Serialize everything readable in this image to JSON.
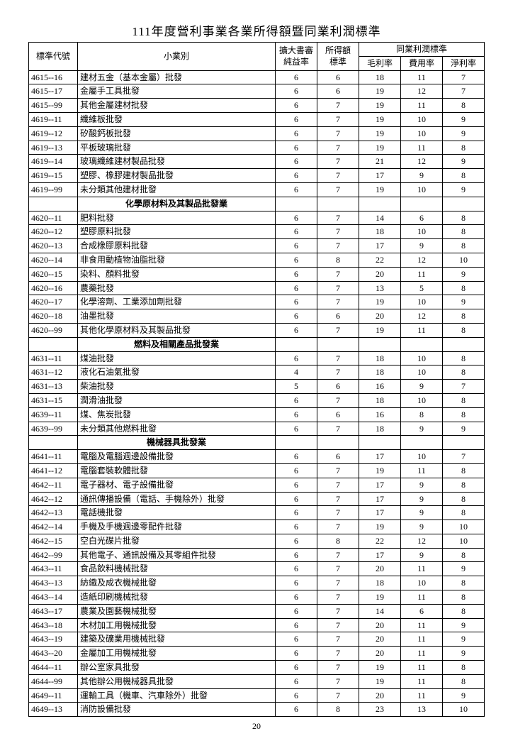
{
  "title": "111年度營利事業各業所得額暨同業利潤標準",
  "page_number": "20",
  "headers": {
    "code": "標準代號",
    "name": "小業別",
    "audit": "擴大書審\n純益率",
    "income": "所得額\n標準",
    "profit_group": "同業利潤標準",
    "gross": "毛利率",
    "cost": "費用率",
    "net": "淨利率"
  },
  "rows": [
    {
      "code": "4615--16",
      "name": "建材五金（基本金屬）批發",
      "a": "6",
      "b": "6",
      "c": "18",
      "d": "11",
      "e": "7"
    },
    {
      "code": "4615--17",
      "name": "金屬手工具批發",
      "a": "6",
      "b": "6",
      "c": "19",
      "d": "12",
      "e": "7"
    },
    {
      "code": "4615--99",
      "name": "其他金屬建材批發",
      "a": "6",
      "b": "7",
      "c": "19",
      "d": "11",
      "e": "8"
    },
    {
      "code": "4619--11",
      "name": "纖維板批發",
      "a": "6",
      "b": "7",
      "c": "19",
      "d": "10",
      "e": "9"
    },
    {
      "code": "4619--12",
      "name": "矽酸鈣板批發",
      "a": "6",
      "b": "7",
      "c": "19",
      "d": "10",
      "e": "9"
    },
    {
      "code": "4619--13",
      "name": "平板玻璃批發",
      "a": "6",
      "b": "7",
      "c": "19",
      "d": "11",
      "e": "8"
    },
    {
      "code": "4619--14",
      "name": "玻璃纖維建材製品批發",
      "a": "6",
      "b": "7",
      "c": "21",
      "d": "12",
      "e": "9"
    },
    {
      "code": "4619--15",
      "name": "塑膠、橡膠建材製品批發",
      "a": "6",
      "b": "7",
      "c": "17",
      "d": "9",
      "e": "8"
    },
    {
      "code": "4619--99",
      "name": "未分類其他建材批發",
      "a": "6",
      "b": "7",
      "c": "19",
      "d": "10",
      "e": "9"
    },
    {
      "section": true,
      "name": "化學原材料及其製品批發業"
    },
    {
      "code": "4620--11",
      "name": "肥料批發",
      "a": "6",
      "b": "7",
      "c": "14",
      "d": "6",
      "e": "8"
    },
    {
      "code": "4620--12",
      "name": "塑膠原料批發",
      "a": "6",
      "b": "7",
      "c": "18",
      "d": "10",
      "e": "8"
    },
    {
      "code": "4620--13",
      "name": "合成橡膠原料批發",
      "a": "6",
      "b": "7",
      "c": "17",
      "d": "9",
      "e": "8"
    },
    {
      "code": "4620--14",
      "name": "非食用動植物油脂批發",
      "a": "6",
      "b": "8",
      "c": "22",
      "d": "12",
      "e": "10"
    },
    {
      "code": "4620--15",
      "name": "染料、顏料批發",
      "a": "6",
      "b": "7",
      "c": "20",
      "d": "11",
      "e": "9"
    },
    {
      "code": "4620--16",
      "name": "農藥批發",
      "a": "6",
      "b": "7",
      "c": "13",
      "d": "5",
      "e": "8"
    },
    {
      "code": "4620--17",
      "name": "化學溶劑、工業添加劑批發",
      "a": "6",
      "b": "7",
      "c": "19",
      "d": "10",
      "e": "9"
    },
    {
      "code": "4620--18",
      "name": "油墨批發",
      "a": "6",
      "b": "6",
      "c": "20",
      "d": "12",
      "e": "8"
    },
    {
      "code": "4620--99",
      "name": "其他化學原材料及其製品批發",
      "a": "6",
      "b": "7",
      "c": "19",
      "d": "11",
      "e": "8"
    },
    {
      "section": true,
      "name": "燃料及相關產品批發業"
    },
    {
      "code": "4631--11",
      "name": "煤油批發",
      "a": "6",
      "b": "7",
      "c": "18",
      "d": "10",
      "e": "8"
    },
    {
      "code": "4631--12",
      "name": "液化石油氣批發",
      "a": "4",
      "b": "7",
      "c": "18",
      "d": "10",
      "e": "8"
    },
    {
      "code": "4631--13",
      "name": "柴油批發",
      "a": "5",
      "b": "6",
      "c": "16",
      "d": "9",
      "e": "7"
    },
    {
      "code": "4631--15",
      "name": "潤滑油批發",
      "a": "6",
      "b": "7",
      "c": "18",
      "d": "10",
      "e": "8"
    },
    {
      "code": "4639--11",
      "name": "煤、焦炭批發",
      "a": "6",
      "b": "6",
      "c": "16",
      "d": "8",
      "e": "8"
    },
    {
      "code": "4639--99",
      "name": "未分類其他燃料批發",
      "a": "6",
      "b": "7",
      "c": "18",
      "d": "9",
      "e": "9"
    },
    {
      "section": true,
      "name": "機械器具批發業"
    },
    {
      "code": "4641--11",
      "name": "電腦及電腦週邊設備批發",
      "a": "6",
      "b": "6",
      "c": "17",
      "d": "10",
      "e": "7"
    },
    {
      "code": "4641--12",
      "name": "電腦套裝軟體批發",
      "a": "6",
      "b": "7",
      "c": "19",
      "d": "11",
      "e": "8"
    },
    {
      "code": "4642--11",
      "name": "電子器材、電子設備批發",
      "a": "6",
      "b": "7",
      "c": "17",
      "d": "9",
      "e": "8"
    },
    {
      "code": "4642--12",
      "name": "通訊傳播設備（電話、手機除外）批發",
      "a": "6",
      "b": "7",
      "c": "17",
      "d": "9",
      "e": "8"
    },
    {
      "code": "4642--13",
      "name": "電話機批發",
      "a": "6",
      "b": "7",
      "c": "17",
      "d": "9",
      "e": "8"
    },
    {
      "code": "4642--14",
      "name": "手機及手機週邊零配件批發",
      "a": "6",
      "b": "7",
      "c": "19",
      "d": "9",
      "e": "10"
    },
    {
      "code": "4642--15",
      "name": "空白光碟片批發",
      "a": "6",
      "b": "8",
      "c": "22",
      "d": "12",
      "e": "10"
    },
    {
      "code": "4642--99",
      "name": "其他電子、通訊設備及其零組件批發",
      "a": "6",
      "b": "7",
      "c": "17",
      "d": "9",
      "e": "8"
    },
    {
      "code": "4643--11",
      "name": "食品飲料機械批發",
      "a": "6",
      "b": "7",
      "c": "20",
      "d": "11",
      "e": "9"
    },
    {
      "code": "4643--13",
      "name": "紡織及成衣機械批發",
      "a": "6",
      "b": "7",
      "c": "18",
      "d": "10",
      "e": "8"
    },
    {
      "code": "4643--14",
      "name": "造紙印刷機械批發",
      "a": "6",
      "b": "7",
      "c": "19",
      "d": "11",
      "e": "8"
    },
    {
      "code": "4643--17",
      "name": "農業及園藝機械批發",
      "a": "6",
      "b": "7",
      "c": "14",
      "d": "6",
      "e": "8"
    },
    {
      "code": "4643--18",
      "name": "木材加工用機械批發",
      "a": "6",
      "b": "7",
      "c": "20",
      "d": "11",
      "e": "9"
    },
    {
      "code": "4643--19",
      "name": "建築及礦業用機械批發",
      "a": "6",
      "b": "7",
      "c": "20",
      "d": "11",
      "e": "9"
    },
    {
      "code": "4643--20",
      "name": "金屬加工用機械批發",
      "a": "6",
      "b": "7",
      "c": "20",
      "d": "11",
      "e": "9"
    },
    {
      "code": "4644--11",
      "name": "辦公室家具批發",
      "a": "6",
      "b": "7",
      "c": "19",
      "d": "11",
      "e": "8"
    },
    {
      "code": "4644--99",
      "name": "其他辦公用機械器具批發",
      "a": "6",
      "b": "7",
      "c": "19",
      "d": "11",
      "e": "8"
    },
    {
      "code": "4649--11",
      "name": "運輸工具（機車、汽車除外）批發",
      "a": "6",
      "b": "7",
      "c": "20",
      "d": "11",
      "e": "9"
    },
    {
      "code": "4649--13",
      "name": "消防設備批發",
      "a": "6",
      "b": "8",
      "c": "23",
      "d": "13",
      "e": "10"
    }
  ]
}
